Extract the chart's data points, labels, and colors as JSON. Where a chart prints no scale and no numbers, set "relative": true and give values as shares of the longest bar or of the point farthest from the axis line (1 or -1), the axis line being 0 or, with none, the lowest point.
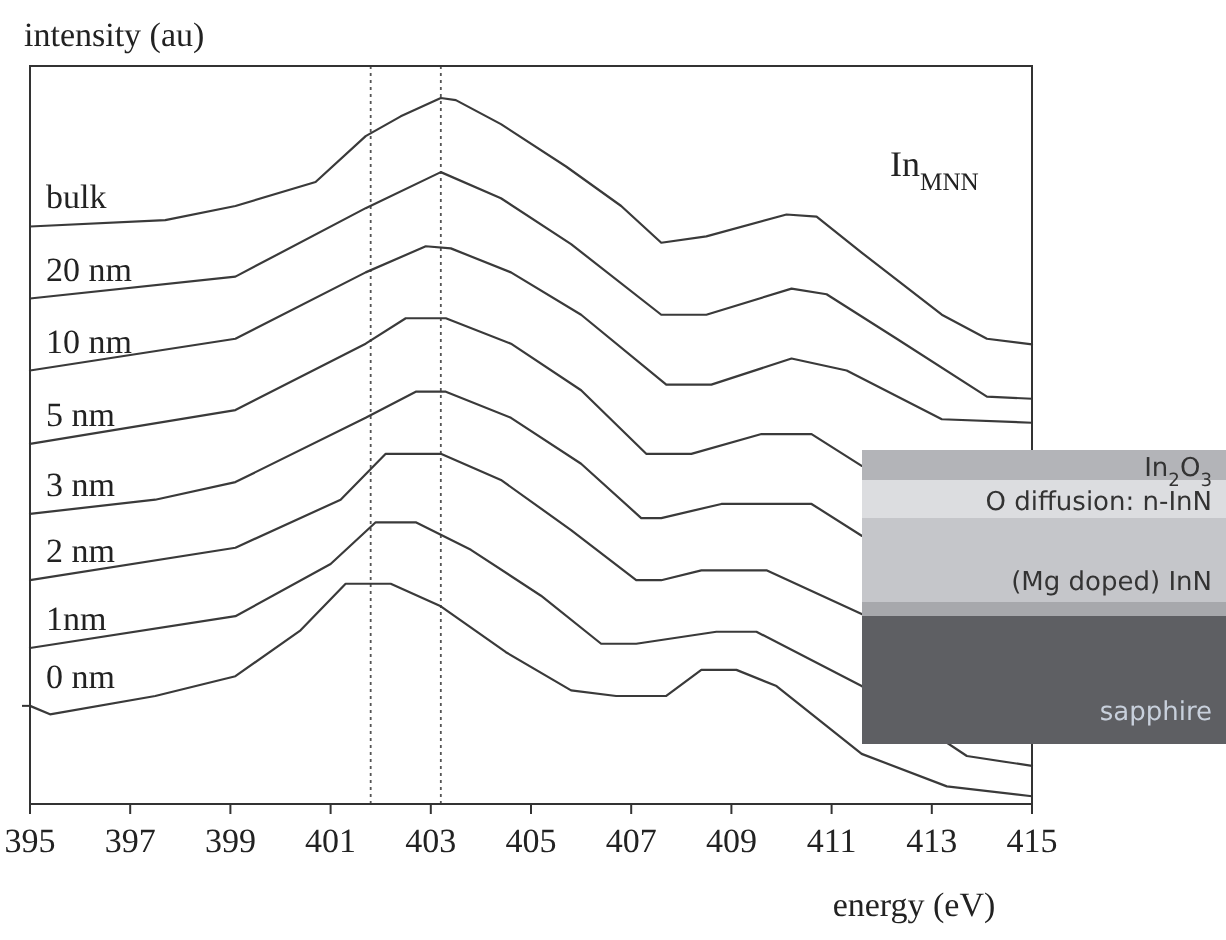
{
  "chart_data": {
    "type": "line",
    "relative": true,
    "xlabel": "energy (eV)",
    "ylabel": "intensity (au)",
    "xlim": [
      395,
      415
    ],
    "xticks": [
      395,
      397,
      399,
      401,
      403,
      405,
      407,
      409,
      411,
      413,
      415
    ],
    "grid": false,
    "legend": false,
    "marker": "none",
    "line_style": "solid",
    "ref_lines": [
      {
        "axis": "x",
        "value": 401.8,
        "line_style": "dotted",
        "color": "#555555"
      },
      {
        "axis": "x",
        "value": 403.2,
        "line_style": "dotted",
        "color": "#555555"
      }
    ],
    "annotations": [
      "In$_{MNN}$",
      "In$_{2}$O$_{3}$",
      "O diffusion: n-InN",
      "(Mg doped) InN",
      "sapphire"
    ],
    "series": [
      {
        "name": "bulk",
        "color": "#3a3a3a",
        "x": [
          395,
          397.7,
          399.1,
          400.7,
          401.7,
          402.4,
          403.2,
          403.5,
          404.4,
          405.7,
          406.8,
          407.6,
          408.5,
          410.1,
          410.7,
          411.6,
          413.2,
          414.1,
          415
        ],
        "values": [
          0.818,
          0.827,
          0.847,
          0.881,
          0.946,
          0.974,
          1.0,
          0.997,
          0.963,
          0.903,
          0.847,
          0.795,
          0.804,
          0.835,
          0.832,
          0.781,
          0.693,
          0.659,
          0.651
        ]
      },
      {
        "name": "20 nm",
        "color": "#3a3a3a",
        "x": [
          395,
          399.1,
          401.7,
          403.2,
          404.4,
          405.8,
          407.6,
          408.5,
          410.2,
          410.9,
          412.3,
          414.1,
          415
        ],
        "values": [
          0.716,
          0.747,
          0.844,
          0.895,
          0.858,
          0.793,
          0.693,
          0.693,
          0.73,
          0.722,
          0.659,
          0.577,
          0.574
        ]
      },
      {
        "name": "10 nm",
        "color": "#3a3a3a",
        "x": [
          395,
          399.1,
          401.7,
          402.9,
          403.4,
          404.6,
          406.0,
          407.7,
          408.6,
          410.2,
          411.3,
          413.2,
          415
        ],
        "values": [
          0.614,
          0.659,
          0.753,
          0.79,
          0.787,
          0.753,
          0.693,
          0.594,
          0.594,
          0.631,
          0.614,
          0.545,
          0.54
        ]
      },
      {
        "name": "5 nm",
        "color": "#3a3a3a",
        "x": [
          395,
          399.1,
          401.7,
          402.5,
          403.3,
          404.6,
          406.0,
          407.3,
          408.2,
          409.6,
          410.6,
          411.6
        ],
        "values": [
          0.51,
          0.558,
          0.652,
          0.688,
          0.688,
          0.652,
          0.586,
          0.496,
          0.496,
          0.524,
          0.524,
          0.479
        ]
      },
      {
        "name": "3 nm",
        "color": "#3a3a3a",
        "x": [
          395,
          397.5,
          399.1,
          401.7,
          402.7,
          403.3,
          404.6,
          406.0,
          407.2,
          407.6,
          408.8,
          410.6,
          411.6
        ],
        "values": [
          0.411,
          0.431,
          0.456,
          0.547,
          0.584,
          0.584,
          0.547,
          0.482,
          0.405,
          0.405,
          0.425,
          0.425,
          0.38
        ]
      },
      {
        "name": "2 nm",
        "color": "#3a3a3a",
        "x": [
          395,
          399.1,
          401.2,
          402.1,
          403.2,
          404.4,
          405.8,
          407.1,
          407.6,
          408.4,
          409.7,
          411.6
        ],
        "values": [
          0.317,
          0.363,
          0.431,
          0.496,
          0.496,
          0.459,
          0.388,
          0.317,
          0.317,
          0.331,
          0.331,
          0.269
        ]
      },
      {
        "name": "1nm",
        "color": "#3a3a3a",
        "x": [
          395,
          399.1,
          401.0,
          401.9,
          402.7,
          403.8,
          405.2,
          406.4,
          407.1,
          408.7,
          409.5,
          411.6,
          413.7,
          415
        ],
        "values": [
          0.221,
          0.266,
          0.34,
          0.399,
          0.399,
          0.36,
          0.295,
          0.227,
          0.227,
          0.244,
          0.244,
          0.167,
          0.068,
          0.054
        ]
      },
      {
        "name": "0 nm",
        "color": "#3a3a3a",
        "x": [
          395,
          395.4,
          397.5,
          399.1,
          400.4,
          401.3,
          402.2,
          403.2,
          404.5,
          405.8,
          406.7,
          407.7,
          408.4,
          409.1,
          409.9,
          411.6,
          413.3,
          415
        ],
        "values": [
          0.139,
          0.127,
          0.153,
          0.181,
          0.246,
          0.312,
          0.312,
          0.28,
          0.215,
          0.161,
          0.153,
          0.153,
          0.19,
          0.19,
          0.167,
          0.071,
          0.025,
          0.011
        ]
      }
    ]
  }
}
